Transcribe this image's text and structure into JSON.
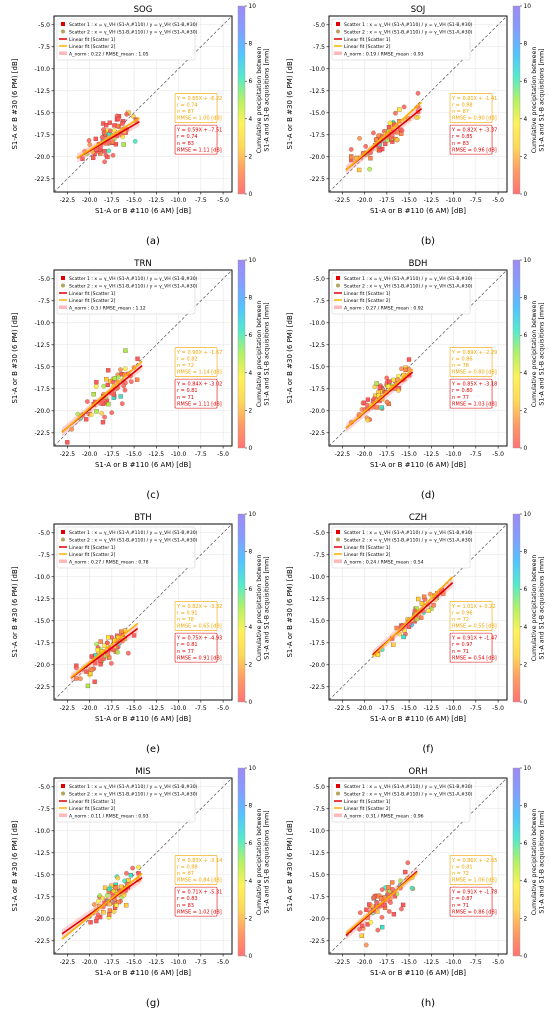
{
  "colorbar_label": "Cumulative precipitation between\nS1-A and S1-B acquisitions [mm]",
  "colorbar_ticks": [
    0,
    2,
    4,
    6,
    8,
    10
  ],
  "colorbar_colors": [
    "#ff5a5a",
    "#ff8a4a",
    "#ffd23a",
    "#ffef3a",
    "#a6ef4a",
    "#36e6c6",
    "#34b8ff",
    "#6f8cff",
    "#8b76f0"
  ],
  "legend": {
    "scatter1": "Scatter 1 : x = γ_VH (S1-A,#110) / y = γ_VH (S1-B,#30)",
    "scatter2": "Scatter 2 : x = γ_VH (S1-B,#110) / y = γ_VH (S1-A,#30)",
    "fit1": "Linear fit [Scatter 1]",
    "fit2": "Linear fit [Scatter 2]",
    "norm_prefix": "A_norm : "
  },
  "chart_data": [
    {
      "type": "scatter",
      "caption": "(a)",
      "title": "SOG",
      "xlabel": "S1-A or B #110 (6 AM) [dB]",
      "ylabel": "S1-A or B #30 (6 PM) [dB]",
      "xlim": [
        -24,
        -4
      ],
      "ylim": [
        -24,
        -4
      ],
      "ticks": [
        -22.5,
        -20.0,
        -17.5,
        -15.0,
        -12.5,
        -10.0,
        -7.5,
        -5.0
      ],
      "norm_text": "0.22 / RMSE_mean : 1.05",
      "legend_scatter1": "Scatter 1 : x = γ_VH (S1-A,#110) / y = γ_VH (S1-B,#30)",
      "legend_scatter2": "Scatter 2 : x = γ_VH (S1-B,#110) / y = γ_VH (S1-A,#30)",
      "fit2": {
        "slope": 0.65,
        "intercept": -6.22,
        "stats": [
          "Y = 0.65X + -6.22",
          "r = 0.74",
          "n = 87",
          "RMSE = 1.00 [dB]"
        ]
      },
      "fit1": {
        "slope": 0.59,
        "intercept": -7.51,
        "stats": [
          "Y = 0.59X + -7.51",
          "r = 0.74",
          "n = 83",
          "RMSE = 1.11 [dB]"
        ]
      },
      "cloud": {
        "cx": -17.9,
        "cy": -17.9,
        "sx": 1.5,
        "sy": 1.0,
        "xmin": -20.8,
        "xmax": -14.8,
        "n": 80
      }
    },
    {
      "type": "scatter",
      "caption": "(b)",
      "title": "SOJ",
      "xlabel": "S1-A or B #110 (6 AM) [dB]",
      "ylabel": "S1-A or B #30 (6 PM) [dB]",
      "xlim": [
        -24,
        -4
      ],
      "ylim": [
        -24,
        -4
      ],
      "ticks": [
        -22.5,
        -20.0,
        -17.5,
        -15.0,
        -12.5,
        -10.0,
        -7.5,
        -5.0
      ],
      "norm_text": "0.19 / RMSE_mean : 0.93",
      "legend_scatter1": "Scatter 1 : x = γ_VH (S1-A,#110) / y = γ_VH (S1-B,#30)",
      "legend_scatter2": "Scatter 2 : x = γ_VH (S1-B,#110) / y = γ_VH (S1-A,#30)",
      "fit2": {
        "slope": 0.91,
        "intercept": -1.41,
        "stats": [
          "Y = 0.91X + -1.41",
          "r = 0.88",
          "n = 87",
          "RMSE = 0.90 [dB]"
        ]
      },
      "fit1": {
        "slope": 0.82,
        "intercept": -3.37,
        "stats": [
          "Y = 0.82X + -3.37",
          "r = 0.85",
          "n = 83",
          "RMSE = 0.96 [dB]"
        ]
      },
      "cloud": {
        "cx": -17.8,
        "cy": -17.8,
        "sx": 1.8,
        "sy": 0.9,
        "xmin": -21.5,
        "xmax": -14.0,
        "n": 80
      }
    },
    {
      "type": "scatter",
      "caption": "(c)",
      "title": "TRN",
      "xlabel": "S1-A or B #110 (6 AM) [dB]",
      "ylabel": "S1-A or B #30 (6 PM) [dB]",
      "xlim": [
        -24,
        -4
      ],
      "ylim": [
        -24,
        -4
      ],
      "ticks": [
        -22.5,
        -20.0,
        -17.5,
        -15.0,
        -12.5,
        -10.0,
        -7.5,
        -5.0
      ],
      "norm_text": "0.3 / RMSE_mean : 1.12",
      "legend_scatter1": "Scatter 1 : x = γ_VH (S1-A,#110) / y = γ_VH (S1-B,#30)",
      "legend_scatter2": "Scatter 2 : x = γ_VH (S1-B,#110) / y = γ_VH (S1-A,#30)",
      "fit2": {
        "slope": 0.9,
        "intercept": -1.67,
        "stats": [
          "Y = 0.90X + -1.67",
          "r = 0.82",
          "n = 72",
          "RMSE = 1.14 [dB]"
        ]
      },
      "fit1": {
        "slope": 0.84,
        "intercept": -3.02,
        "stats": [
          "Y = 0.84X + -3.02",
          "r = 0.81",
          "n = 71",
          "RMSE = 1.11 [dB]"
        ]
      },
      "cloud": {
        "cx": -17.8,
        "cy": -17.8,
        "sx": 1.8,
        "sy": 1.1,
        "xmin": -22.5,
        "xmax": -14.5,
        "n": 70
      }
    },
    {
      "type": "scatter",
      "caption": "(d)",
      "title": "BDH",
      "xlabel": "S1-A or B #110 (6 AM) [dB]",
      "ylabel": "S1-A or B #30 (6 PM) [dB]",
      "xlim": [
        -24,
        -4
      ],
      "ylim": [
        -24,
        -4
      ],
      "ticks": [
        -22.5,
        -20.0,
        -17.5,
        -15.0,
        -12.5,
        -10.0,
        -7.5,
        -5.0
      ],
      "norm_text": "0.27 / RMSE_mean : 0.92",
      "legend_scatter1": "Scatter 1 : x = γ_VH (S1-A,#110) / y = γ_VH (S1-B,#30)",
      "legend_scatter2": "Scatter 2 : x = γ_VH (S1-B,#110) / y = γ_VH (S1-A,#30)",
      "fit2": {
        "slope": 0.89,
        "intercept": -2.29,
        "stats": [
          "Y = 0.89X + -2.29",
          "r = 0.86",
          "n = 78",
          "RMSE = 0.80 [dB]"
        ]
      },
      "fit1": {
        "slope": 0.85,
        "intercept": -3.18,
        "stats": [
          "Y = 0.85X + -3.18",
          "r = 0.80",
          "n = 77",
          "RMSE = 1.03 [dB]"
        ]
      },
      "cloud": {
        "cx": -18.3,
        "cy": -18.5,
        "sx": 1.5,
        "sy": 0.9,
        "xmin": -21.5,
        "xmax": -15.0,
        "n": 75
      }
    },
    {
      "type": "scatter",
      "caption": "(e)",
      "title": "BTH",
      "xlabel": "S1-A or B #110 (6 AM) [dB]",
      "ylabel": "S1-A or B #30 (6 PM) [dB]",
      "xlim": [
        -24,
        -4
      ],
      "ylim": [
        -24,
        -4
      ],
      "ticks": [
        -22.5,
        -20.0,
        -17.5,
        -15.0,
        -12.5,
        -10.0,
        -7.5,
        -5.0
      ],
      "norm_text": "0.27 / RMSE_mean : 0.78",
      "legend_scatter1": "Scatter 1 : x = γ_VH (S1-A,#110) / y = γ_VH (S1-B,#30)",
      "legend_scatter2": "Scatter 2 : x = γ_VH (S1-B,#110) / y = γ_VH (S1-A,#30)",
      "fit2": {
        "slope": 0.82,
        "intercept": -3.32,
        "stats": [
          "Y = 0.82X + -3.32",
          "r = 0.91",
          "n = 78",
          "RMSE = 0.65 [dB]"
        ]
      },
      "fit1": {
        "slope": 0.75,
        "intercept": -4.93,
        "stats": [
          "Y = 0.75X + -4.93",
          "r = 0.81",
          "n = 77",
          "RMSE = 0.91 [dB]"
        ]
      },
      "cloud": {
        "cx": -18.5,
        "cy": -18.8,
        "sx": 1.6,
        "sy": 0.8,
        "xmin": -21.5,
        "xmax": -15.0,
        "n": 75
      }
    },
    {
      "type": "scatter",
      "caption": "(f)",
      "title": "CZH",
      "xlabel": "S1-A or B #110 (6 AM) [dB]",
      "ylabel": "S1-A or B #30 (6 PM) [dB]",
      "xlim": [
        -24,
        -4
      ],
      "ylim": [
        -24,
        -4
      ],
      "ticks": [
        -22.5,
        -20.0,
        -17.5,
        -15.0,
        -12.5,
        -10.0,
        -7.5,
        -5.0
      ],
      "norm_text": "0.24 / RMSE_mean : 0.54",
      "legend_scatter1": "Scatter 1 : x = γ_VH (S1-A,#110) / y = γ_VH (S1-B,#30)",
      "legend_scatter2": "Scatter 2 : x = γ_VH (S1-B,#110) / y = γ_VH (S1-A,#30)",
      "fit2": {
        "slope": 1.01,
        "intercept": 0.22,
        "stats": [
          "Y = 1.01X + 0.22",
          "r = 0.96",
          "n = 72",
          "RMSE = 0.55 [dB]"
        ]
      },
      "fit1": {
        "slope": 0.91,
        "intercept": -1.47,
        "stats": [
          "Y = 0.91X + -1.47",
          "r = 0.97",
          "n = 71",
          "RMSE = 0.54 [dB]"
        ]
      },
      "cloud": {
        "cx": -14.5,
        "cy": -14.6,
        "sx": 2.0,
        "sy": 0.5,
        "xmin": -18.5,
        "xmax": -10.5,
        "n": 70
      }
    },
    {
      "type": "scatter",
      "caption": "(g)",
      "title": "MIS",
      "xlabel": "S1-A or B #110 (6 AM) [dB]",
      "ylabel": "S1-A or B #30 (6 PM) [dB]",
      "xlim": [
        -24,
        -4
      ],
      "ylim": [
        -24,
        -4
      ],
      "ticks": [
        -22.5,
        -20.0,
        -17.5,
        -15.0,
        -12.5,
        -10.0,
        -7.5,
        -5.0
      ],
      "norm_text": "0.11 / RMSE_mean : 0.93",
      "legend_scatter1": "Scatter 1 : x = γ_VH (S1-A,#110) / y = γ_VH (S1-B,#30)",
      "legend_scatter2": "Scatter 2 : x = γ_VH (S1-B,#110) / y = γ_VH (S1-A,#30)",
      "fit2": {
        "slope": 0.83,
        "intercept": -3.14,
        "stats": [
          "Y = 0.83X + -3.14",
          "r = 0.88",
          "n = 87",
          "RMSE = 0.84 [dB]"
        ]
      },
      "fit1": {
        "slope": 0.71,
        "intercept": -5.31,
        "stats": [
          "Y = 0.71X + -5.31",
          "r = 0.83",
          "n = 83",
          "RMSE = 1.02 [dB]"
        ]
      },
      "cloud": {
        "cx": -17.5,
        "cy": -17.6,
        "sx": 1.4,
        "sy": 1.0,
        "xmin": -22.5,
        "xmax": -14.5,
        "n": 80
      }
    },
    {
      "type": "scatter",
      "caption": "(h)",
      "title": "ORH",
      "xlabel": "S1-A or B #110 (6 AM) [dB]",
      "ylabel": "S1-A or B #30 (6 PM) [dB]",
      "xlim": [
        -24,
        -4
      ],
      "ylim": [
        -24,
        -4
      ],
      "ticks": [
        -22.5,
        -20.0,
        -17.5,
        -15.0,
        -12.5,
        -10.0,
        -7.5,
        -5.0
      ],
      "norm_text": "0.31 / RMSE_mean : 0.96",
      "legend_scatter1": "Scatter 1 : x = γ_VH (S1-A,#110) / y = γ_VH (S1-B,#30)",
      "legend_scatter2": "Scatter 2 : x = γ_VH (S1-B,#110) / y = γ_VH (S1-A,#30)",
      "fit2": {
        "slope": 0.86,
        "intercept": -2.65,
        "stats": [
          "Y = 0.86X + -2.65",
          "r = 0.81",
          "n = 72",
          "RMSE = 1.06 [dB]"
        ]
      },
      "fit1": {
        "slope": 0.91,
        "intercept": -1.78,
        "stats": [
          "Y = 0.91X + -1.78",
          "r = 0.87",
          "n = 71",
          "RMSE = 0.86 [dB]"
        ]
      },
      "cloud": {
        "cx": -18.0,
        "cy": -18.0,
        "sx": 1.6,
        "sy": 1.0,
        "xmin": -21.5,
        "xmax": -14.5,
        "n": 70
      }
    }
  ]
}
